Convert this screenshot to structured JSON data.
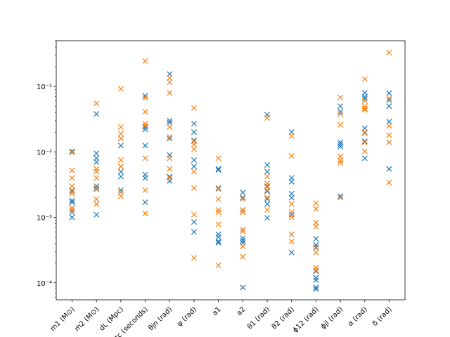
{
  "chart_data": {
    "type": "scatter",
    "title": "",
    "xlabel": "",
    "ylabel": "",
    "y_scale": "log",
    "ylim": [
      5.5e-05,
      0.5
    ],
    "grid": false,
    "legend": "none",
    "marker": "x",
    "categories": [
      "m1 (M⊙)",
      "m2 (M⊙)",
      "dL (Mpc)",
      "tc (seconds)",
      "θjn (rad)",
      "ψ (rad)",
      "a1",
      "a2",
      "θ1 (rad)",
      "θ2 (rad)",
      "ϕ12 (rad)",
      "ϕjl (rad)",
      "α (rad)",
      "δ (rad)"
    ],
    "y_ticks": [
      {
        "value": 0.0001,
        "label": "10⁻⁴"
      },
      {
        "value": 0.001,
        "label": "10⁻³"
      },
      {
        "value": 0.01,
        "label": "10⁻²"
      },
      {
        "value": 0.1,
        "label": "10⁻¹"
      }
    ],
    "series": [
      {
        "color": "#1f77b4",
        "values": [
          [
            0.0102,
            0.0018,
            0.0014,
            0.0012,
            0.001,
            0.0025,
            0.0017
          ],
          [
            0.038,
            0.0095,
            0.008,
            0.007,
            0.003,
            0.0027,
            0.0011
          ],
          [
            0.016,
            0.0125,
            0.006,
            0.005,
            0.0042,
            0.0026
          ],
          [
            0.072,
            0.024,
            0.022,
            0.0125,
            0.0045,
            0.004,
            0.0017
          ],
          [
            0.155,
            0.03,
            0.028,
            0.016,
            0.009,
            0.0042,
            0.0036
          ],
          [
            0.027,
            0.02,
            0.015,
            0.0075,
            0.006,
            0.00085,
            0.0006
          ],
          [
            0.0055,
            0.0053,
            0.0028,
            0.00055,
            0.0005,
            0.00043,
            0.00041
          ],
          [
            0.0024,
            0.002,
            0.0013,
            0.0012,
            0.00048,
            0.00044,
            0.00041,
            8.5e-05
          ],
          [
            0.037,
            0.0063,
            0.005,
            0.003,
            0.0025,
            0.0019,
            0.0016,
            0.00098
          ],
          [
            0.02,
            0.004,
            0.0035,
            0.0023,
            0.002,
            0.0011,
            0.00055,
            0.00029
          ],
          [
            0.00047,
            0.00038,
            0.00035,
            0.00015,
            0.00012,
            0.00011,
            8.5e-05,
            8e-05
          ],
          [
            0.05,
            0.041,
            0.014,
            0.013,
            0.012,
            0.0021
          ],
          [
            0.08,
            0.07,
            0.065,
            0.023,
            0.0195,
            0.0145,
            0.008
          ],
          [
            0.079,
            0.062,
            0.05,
            0.029,
            0.0055
          ]
        ]
      },
      {
        "color": "#ff7f0e",
        "values": [
          [
            0.0098,
            0.0052,
            0.004,
            0.003,
            0.0026,
            0.0023,
            0.0014,
            0.0013
          ],
          [
            0.055,
            0.0055,
            0.005,
            0.004,
            0.0028,
            0.0019,
            0.0016
          ],
          [
            0.092,
            0.024,
            0.019,
            0.016,
            0.0075,
            0.006,
            0.0024,
            0.0021
          ],
          [
            0.245,
            0.067,
            0.041,
            0.027,
            0.025,
            0.008,
            0.0026,
            0.00115
          ],
          [
            0.135,
            0.115,
            0.08,
            0.024,
            0.017,
            0.008,
            0.0055,
            0.004
          ],
          [
            0.047,
            0.0145,
            0.013,
            0.011,
            0.005,
            0.0028,
            0.0011,
            0.00024
          ],
          [
            0.008,
            0.0027,
            0.0019,
            0.0013,
            0.0012,
            0.00078,
            0.000185
          ],
          [
            0.0019,
            0.0013,
            0.0012,
            0.00065,
            0.00061,
            0.00036,
            0.00025
          ],
          [
            0.033,
            0.0042,
            0.0033,
            0.0029,
            0.0026,
            0.002,
            0.0013
          ],
          [
            0.0175,
            0.0087,
            0.0016,
            0.0012,
            0.001,
            0.00055,
            0.00043
          ],
          [
            0.00165,
            0.00135,
            0.00083,
            0.00072,
            0.00034,
            0.00029,
            0.00017,
            0.000155
          ],
          [
            0.068,
            0.038,
            0.026,
            0.0085,
            0.0074,
            0.0068,
            0.002
          ],
          [
            0.13,
            0.06,
            0.05,
            0.046,
            0.044,
            0.02,
            0.014,
            0.0102
          ],
          [
            0.33,
            0.066,
            0.025,
            0.018,
            0.014,
            0.0034
          ]
        ]
      }
    ]
  }
}
